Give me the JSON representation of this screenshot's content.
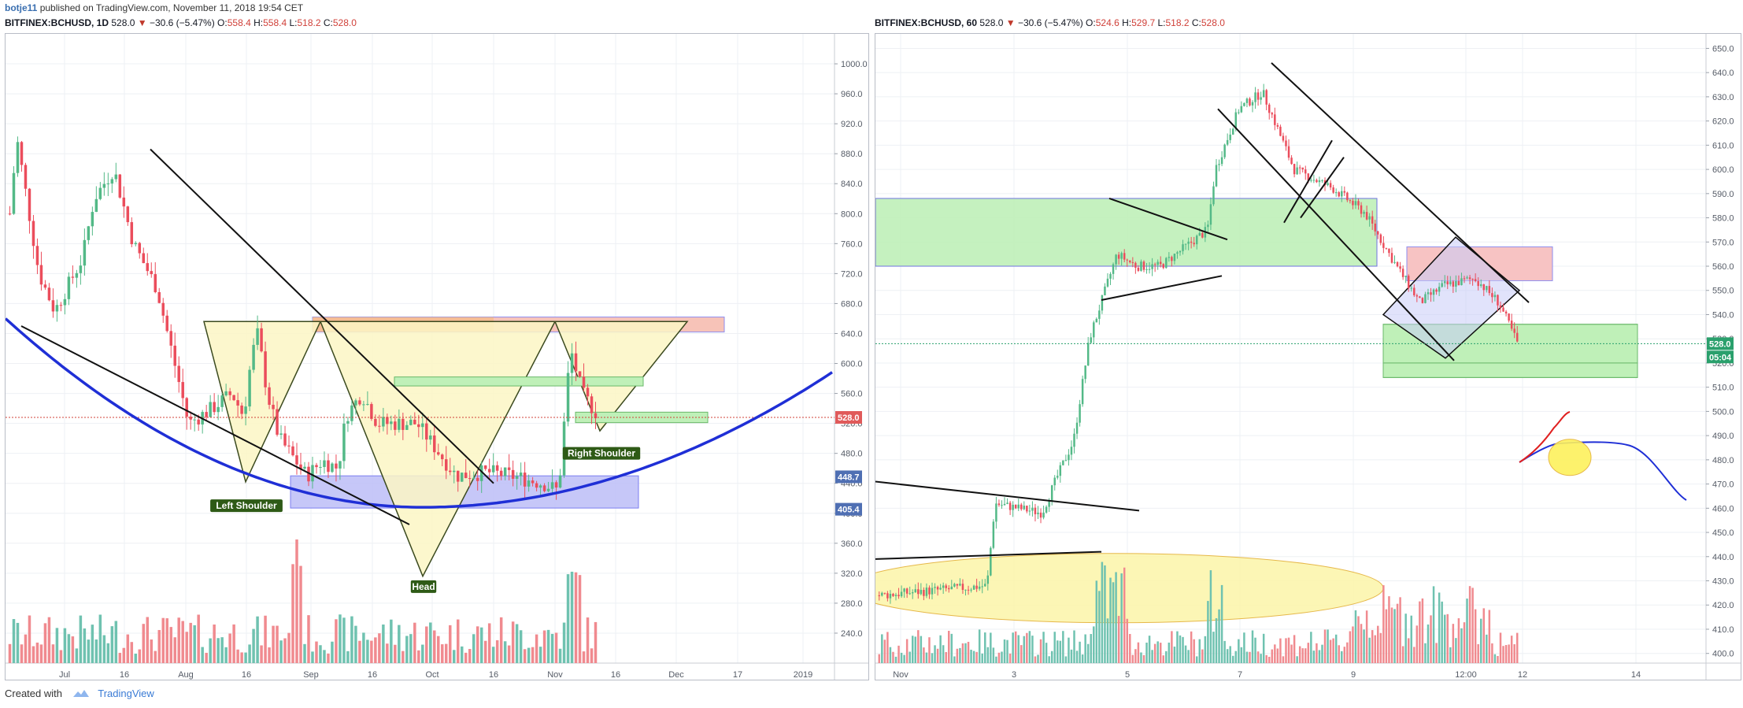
{
  "header": {
    "author": "botje11",
    "published": "published on TradingView.com, November 11, 2018 19:54 CET"
  },
  "left_ticker": {
    "symbol": "BITFINEX:BCHUSD, 1D",
    "last": "528.0",
    "arrow": "▼",
    "change": "−30.6 (−5.47%)",
    "o_label": "O:",
    "o": "558.4",
    "h_label": "H:",
    "h": "558.4",
    "l_label": "L:",
    "l": "518.2",
    "c_label": "C:",
    "c": "528.0"
  },
  "right_ticker": {
    "symbol": "BITFINEX:BCHUSD, 60",
    "last": "528.0",
    "arrow": "▼",
    "change": "−30.6 (−5.47%)",
    "o_label": "O:",
    "o": "524.6",
    "h_label": "H:",
    "h": "529.7",
    "l_label": "L:",
    "l": "518.2",
    "c_label": "C:",
    "c": "528.0"
  },
  "footer": {
    "created": "Created with",
    "brand": "TradingView"
  },
  "colors": {
    "up": "#53b987",
    "down": "#eb4d5c",
    "vol_up": "#6fc2b0",
    "vol_down": "#f08a8f",
    "grid": "#eef0f4",
    "axis_text": "#555b66",
    "price_line": "#d0413a",
    "blue_curve": "#1f2fd6",
    "triangle_fill": "#fbf6c4",
    "triangle_stroke": "#3b4a1f",
    "green_zone": "#bff0b8",
    "red_zone": "#f7c3c3",
    "purple_zone": "#bcbdf7",
    "ellipse": "#fbf5a8"
  },
  "chart_data": [
    {
      "type": "candlestick",
      "symbol": "BITFINEX:BCHUSD",
      "interval": "1D",
      "ylim": [
        200,
        1040
      ],
      "yticks": [
        "240.0",
        "280.0",
        "320.0",
        "360.0",
        "400.0",
        "440.0",
        "480.0",
        "520.0",
        "560.0",
        "600.0",
        "640.0",
        "680.0",
        "720.0",
        "760.0",
        "800.0",
        "840.0",
        "880.0",
        "920.0",
        "960.0",
        "1000.0"
      ],
      "xticks": [
        "Jul",
        "16",
        "Aug",
        "16",
        "Sep",
        "16",
        "Oct",
        "16",
        "Nov",
        "16",
        "Dec",
        "17",
        "2019"
      ],
      "price_labels": [
        {
          "text": "528.0",
          "price": 528,
          "kind": "last"
        },
        {
          "text": "448.7",
          "price": 448.7,
          "kind": "mark"
        },
        {
          "text": "405.4",
          "price": 405.4,
          "kind": "mark"
        }
      ],
      "annotations": [
        "Left Shoulder",
        "Head",
        "Right Shoulder"
      ],
      "approx_close_path": [
        {
          "date": "2018-06-18",
          "price": 800
        },
        {
          "date": "2018-06-24",
          "price": 900
        },
        {
          "date": "2018-07-01",
          "price": 720
        },
        {
          "date": "2018-07-08",
          "price": 670
        },
        {
          "date": "2018-07-15",
          "price": 820
        },
        {
          "date": "2018-07-20",
          "price": 870
        },
        {
          "date": "2018-07-28",
          "price": 760
        },
        {
          "date": "2018-08-05",
          "price": 640
        },
        {
          "date": "2018-08-12",
          "price": 530
        },
        {
          "date": "2018-08-20",
          "price": 540
        },
        {
          "date": "2018-08-26",
          "price": 530
        },
        {
          "date": "2018-09-02",
          "price": 640
        },
        {
          "date": "2018-09-08",
          "price": 500
        },
        {
          "date": "2018-09-15",
          "price": 440
        },
        {
          "date": "2018-09-22",
          "price": 540
        },
        {
          "date": "2018-09-30",
          "price": 520
        },
        {
          "date": "2018-10-08",
          "price": 520
        },
        {
          "date": "2018-10-15",
          "price": 450
        },
        {
          "date": "2018-10-25",
          "price": 440
        },
        {
          "date": "2018-11-02",
          "price": 430
        },
        {
          "date": "2018-11-06",
          "price": 620
        },
        {
          "date": "2018-11-11",
          "price": 528
        }
      ]
    },
    {
      "type": "candlestick",
      "symbol": "BITFINEX:BCHUSD",
      "interval": "60",
      "ylim": [
        396,
        656
      ],
      "yticks": [
        "400.0",
        "410.0",
        "420.0",
        "430.0",
        "440.0",
        "450.0",
        "460.0",
        "470.0",
        "480.0",
        "490.0",
        "500.0",
        "510.0",
        "520.0",
        "530.0",
        "540.0",
        "550.0",
        "560.0",
        "570.0",
        "580.0",
        "590.0",
        "600.0",
        "610.0",
        "620.0",
        "630.0",
        "640.0",
        "650.0"
      ],
      "xticks": [
        "Nov",
        "3",
        "5",
        "7",
        "9",
        "12:00",
        "12",
        "14"
      ],
      "price_labels": [
        {
          "text": "528.0",
          "price": 528,
          "kind": "last"
        },
        {
          "text": "05:04",
          "price": 522.5,
          "kind": "countdown"
        }
      ],
      "approx_close_path": [
        {
          "date": "2018-11-01",
          "price": 424
        },
        {
          "date": "2018-11-02",
          "price": 430
        },
        {
          "date": "2018-11-02T12",
          "price": 462
        },
        {
          "date": "2018-11-03",
          "price": 462
        },
        {
          "date": "2018-11-03T12",
          "price": 468
        },
        {
          "date": "2018-11-04",
          "price": 488
        },
        {
          "date": "2018-11-04T12",
          "price": 550
        },
        {
          "date": "2018-11-05",
          "price": 570
        },
        {
          "date": "2018-11-05T12",
          "price": 560
        },
        {
          "date": "2018-11-06",
          "price": 565
        },
        {
          "date": "2018-11-06T12",
          "price": 580
        },
        {
          "date": "2018-11-07",
          "price": 620
        },
        {
          "date": "2018-11-07T12",
          "price": 640
        },
        {
          "date": "2018-11-08",
          "price": 600
        },
        {
          "date": "2018-11-08T12",
          "price": 585
        },
        {
          "date": "2018-11-09",
          "price": 595
        },
        {
          "date": "2018-11-09T12",
          "price": 582
        },
        {
          "date": "2018-11-10",
          "price": 560
        },
        {
          "date": "2018-11-10T12",
          "price": 555
        },
        {
          "date": "2018-11-11",
          "price": 555
        },
        {
          "date": "2018-11-11T12",
          "price": 543
        },
        {
          "date": "2018-11-11T19",
          "price": 528
        }
      ]
    }
  ]
}
